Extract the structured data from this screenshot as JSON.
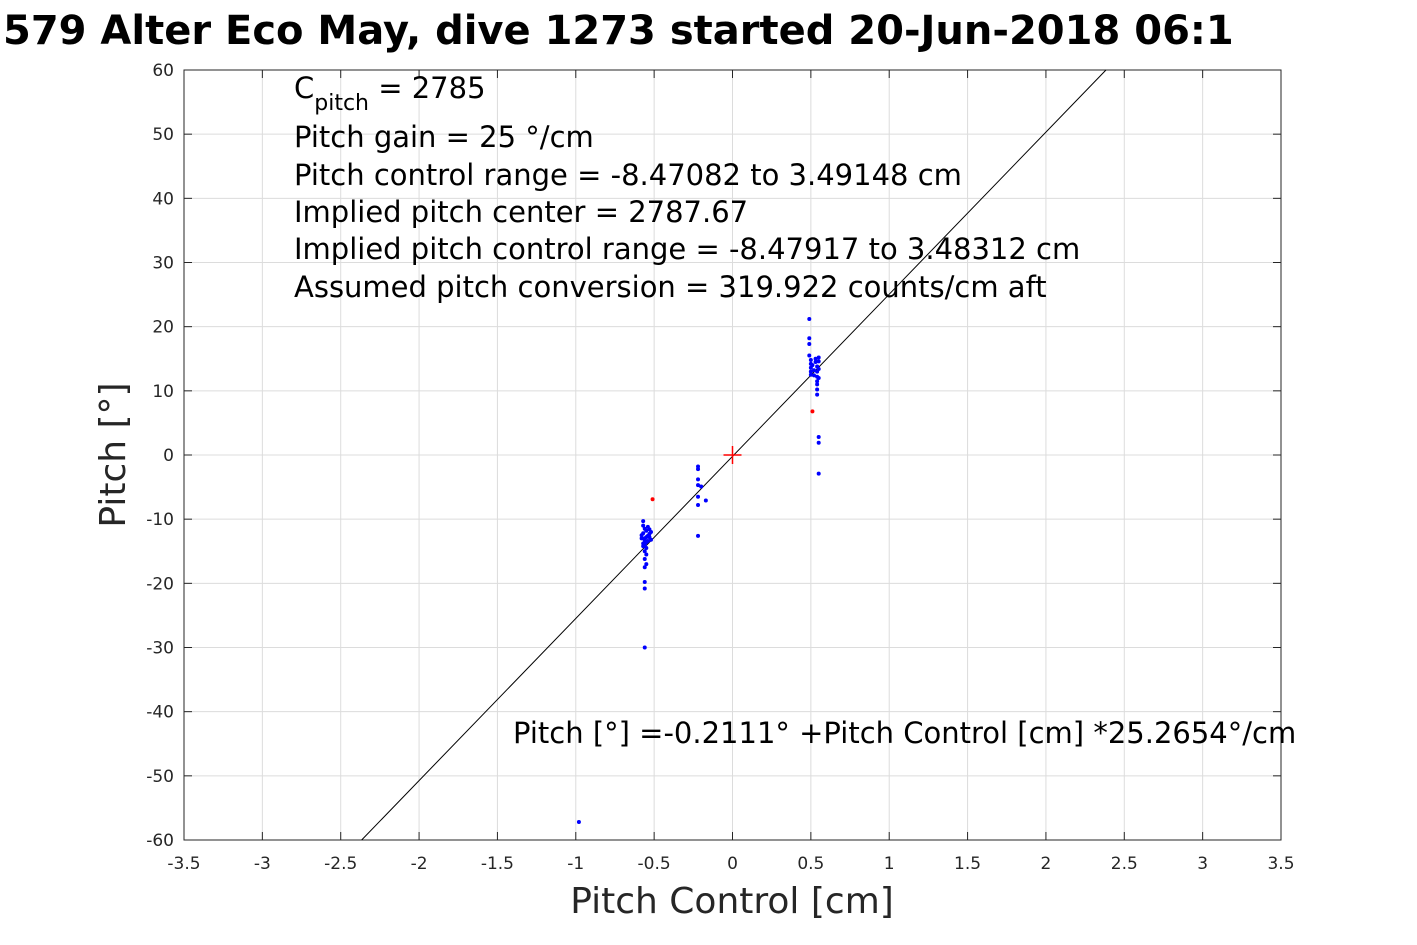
{
  "chart_data": {
    "type": "scatter",
    "title": "579 Alter Eco May, dive 1273 started 20-Jun-2018 06:1",
    "xlabel": "Pitch Control [cm]",
    "ylabel": "Pitch [°]",
    "xlim": [
      -3.5,
      3.5
    ],
    "ylim": [
      -60,
      60
    ],
    "grid": true,
    "x_ticks": [
      -3.5,
      -3,
      -2.5,
      -2,
      -1.5,
      -1,
      -0.5,
      0,
      0.5,
      1,
      1.5,
      2,
      2.5,
      3,
      3.5
    ],
    "x_tick_labels": [
      "-3.5",
      "-3",
      "-2.5",
      "-2",
      "-1.5",
      "-1",
      "-0.5",
      "0",
      "0.5",
      "1",
      "1.5",
      "2",
      "2.5",
      "3",
      "3.5"
    ],
    "y_ticks": [
      -60,
      -50,
      -40,
      -30,
      -20,
      -10,
      0,
      10,
      20,
      30,
      40,
      50,
      60
    ],
    "y_tick_labels": [
      "-60",
      "-50",
      "-40",
      "-30",
      "-20",
      "-10",
      "0",
      "10",
      "20",
      "30",
      "40",
      "50",
      "60"
    ],
    "fit_line": {
      "intercept": -0.2111,
      "slope": 25.2654,
      "color": "#000000"
    },
    "center_marker": {
      "x": 0,
      "y": 0,
      "color": "#ff0000"
    },
    "series": [
      {
        "color": "#0000ff",
        "points": [
          [
            -0.98,
            -57.2
          ],
          [
            -0.56,
            -30.0
          ],
          [
            -0.56,
            -20.8
          ],
          [
            -0.56,
            -19.8
          ],
          [
            -0.57,
            -10.3
          ],
          [
            -0.57,
            -11.0
          ],
          [
            -0.56,
            -11.5
          ],
          [
            -0.55,
            -11.8
          ],
          [
            -0.54,
            -11.2
          ],
          [
            -0.53,
            -11.6
          ],
          [
            -0.52,
            -12.0
          ],
          [
            -0.53,
            -12.3
          ],
          [
            -0.54,
            -12.6
          ],
          [
            -0.55,
            -12.8
          ],
          [
            -0.56,
            -13.0
          ],
          [
            -0.57,
            -12.2
          ],
          [
            -0.58,
            -12.5
          ],
          [
            -0.56,
            -13.3
          ],
          [
            -0.55,
            -13.6
          ],
          [
            -0.56,
            -14.0
          ],
          [
            -0.57,
            -14.2
          ],
          [
            -0.55,
            -14.5
          ],
          [
            -0.56,
            -15.0
          ],
          [
            -0.55,
            -15.5
          ],
          [
            -0.56,
            -16.2
          ],
          [
            -0.55,
            -17.0
          ],
          [
            -0.56,
            -17.5
          ],
          [
            -0.53,
            -12.8
          ],
          [
            -0.52,
            -13.2
          ],
          [
            -0.54,
            -13.4
          ],
          [
            -0.58,
            -13.0
          ],
          [
            -0.57,
            -13.8
          ],
          [
            -0.22,
            -1.8
          ],
          [
            -0.22,
            -2.2
          ],
          [
            -0.22,
            -3.8
          ],
          [
            -0.22,
            -4.7
          ],
          [
            -0.22,
            -6.5
          ],
          [
            -0.22,
            -7.8
          ],
          [
            -0.22,
            -12.6
          ],
          [
            -0.2,
            -4.9
          ],
          [
            -0.17,
            -7.1
          ],
          [
            0.49,
            21.2
          ],
          [
            0.49,
            18.2
          ],
          [
            0.49,
            17.3
          ],
          [
            0.49,
            15.5
          ],
          [
            0.5,
            14.8
          ],
          [
            0.5,
            14.2
          ],
          [
            0.5,
            13.6
          ],
          [
            0.5,
            13.0
          ],
          [
            0.5,
            12.5
          ],
          [
            0.51,
            14.0
          ],
          [
            0.52,
            13.2
          ],
          [
            0.52,
            12.4
          ],
          [
            0.53,
            15.0
          ],
          [
            0.53,
            14.5
          ],
          [
            0.54,
            13.8
          ],
          [
            0.54,
            13.0
          ],
          [
            0.54,
            12.2
          ],
          [
            0.54,
            11.5
          ],
          [
            0.54,
            11.0
          ],
          [
            0.54,
            10.2
          ],
          [
            0.54,
            9.4
          ],
          [
            0.55,
            15.2
          ],
          [
            0.55,
            14.6
          ],
          [
            0.55,
            13.4
          ],
          [
            0.55,
            12.0
          ],
          [
            0.55,
            2.8
          ],
          [
            0.55,
            1.9
          ],
          [
            0.55,
            -2.9
          ]
        ]
      },
      {
        "color": "#ff0000",
        "points": [
          [
            -0.51,
            -6.9
          ],
          [
            0.51,
            6.8
          ]
        ]
      }
    ]
  },
  "annotations": {
    "c_pitch_base": "C",
    "c_pitch_sub": "pitch",
    "c_pitch_rest": " = 2785",
    "line2": "Pitch gain = 25 °/cm",
    "line3": "Pitch control range = -8.47082 to 3.49148 cm",
    "line4": "Implied pitch center = 2787.67",
    "line5": "Implied pitch control range = -8.47917 to 3.48312 cm",
    "line6": "Assumed pitch conversion = 319.922 counts/cm aft",
    "fit_equation": "Pitch [°] =-0.2111° +Pitch Control [cm] *25.2654°/cm"
  }
}
